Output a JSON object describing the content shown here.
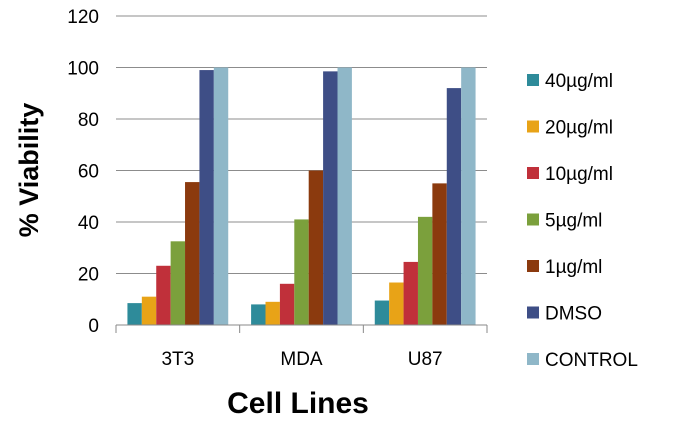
{
  "chart_data": {
    "type": "bar",
    "categories": [
      "3T3",
      "MDA",
      "U87"
    ],
    "series": [
      {
        "name": "40µg/ml",
        "color": "#2E8B9A",
        "values": [
          8.5,
          8,
          9.5
        ]
      },
      {
        "name": "20µg/ml",
        "color": "#E8A317",
        "values": [
          11,
          9,
          16.5
        ]
      },
      {
        "name": "10µg/ml",
        "color": "#C0303A",
        "values": [
          23,
          16,
          24.5
        ]
      },
      {
        "name": "5µg/ml",
        "color": "#7BA03C",
        "values": [
          32.5,
          41,
          42
        ]
      },
      {
        "name": "1µg/ml",
        "color": "#8B3A0E",
        "values": [
          55.5,
          60,
          55
        ]
      },
      {
        "name": "DMSO",
        "color": "#3E4E86",
        "values": [
          99,
          98.5,
          92
        ]
      },
      {
        "name": "CONTROL",
        "color": "#8FB7C8",
        "values": [
          100,
          100,
          100
        ]
      }
    ],
    "xlabel": "Cell Lines",
    "ylabel": "% Viability",
    "ylim": [
      0,
      120
    ],
    "yticks": [
      "0",
      "20",
      "40",
      "60",
      "80",
      "100",
      "120"
    ],
    "grid": true,
    "legend_position": "right"
  }
}
